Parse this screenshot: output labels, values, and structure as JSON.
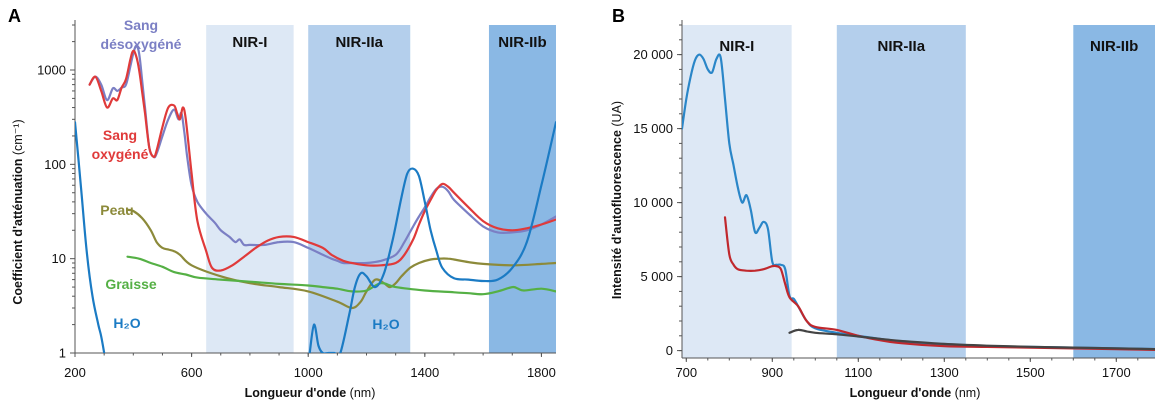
{
  "figure": {
    "width": 1155,
    "height": 405
  },
  "chart_data": [
    {
      "panel": "A",
      "type": "line",
      "xlabel": "Longueur d'onde",
      "xlabel_unit": "(nm)",
      "ylabel": "Coefficient d'atténuation",
      "ylabel_unit": "(cm⁻¹)",
      "xlim": [
        200,
        1850
      ],
      "ylim": [
        1,
        3000
      ],
      "yscale": "log",
      "xticks": [
        200,
        600,
        1000,
        1400,
        1800
      ],
      "yticks": [
        1,
        10,
        100,
        1000
      ],
      "bands": [
        {
          "label": "NIR-I",
          "range": [
            650,
            950
          ],
          "color": "#dde8f5"
        },
        {
          "label": "NIR-IIa",
          "range": [
            1000,
            1350
          ],
          "color": "#b4cfec"
        },
        {
          "label": "NIR-IIb",
          "range": [
            1620,
            1850
          ],
          "color": "#8ab8e4"
        }
      ],
      "series": [
        {
          "name": "Sang désoxygéné",
          "label_lines": [
            "Sang",
            "désoxygéné"
          ],
          "color": "#7b7fc4",
          "x": [
            250,
            270,
            290,
            310,
            330,
            345,
            360,
            375,
            390,
            400,
            410,
            420,
            430,
            440,
            455,
            470,
            480,
            500,
            520,
            540,
            555,
            565,
            575,
            585,
            600,
            620,
            650,
            680,
            700,
            730,
            750,
            765,
            780,
            800,
            850,
            900,
            950,
            1000,
            1050,
            1080,
            1100,
            1120,
            1150,
            1200,
            1250,
            1300,
            1330,
            1360,
            1380,
            1400,
            1420,
            1440,
            1460,
            1480,
            1500,
            1550,
            1600,
            1650,
            1700,
            1750,
            1800,
            1850
          ],
          "y": [
            700,
            850,
            700,
            480,
            640,
            600,
            650,
            700,
            1100,
            1500,
            1800,
            1500,
            800,
            400,
            150,
            120,
            130,
            200,
            300,
            380,
            300,
            350,
            220,
            120,
            60,
            40,
            30,
            24,
            20,
            17,
            15,
            16,
            14,
            14,
            14,
            15,
            15,
            13,
            11,
            10,
            9.5,
            9,
            9,
            9,
            9.5,
            11,
            15,
            22,
            28,
            35,
            45,
            55,
            58,
            52,
            42,
            30,
            22,
            19,
            19,
            20,
            23,
            28
          ]
        },
        {
          "name": "Sang oxygéné",
          "label_lines": [
            "Sang",
            "oxygéné"
          ],
          "color": "#e03a3a",
          "x": [
            250,
            270,
            290,
            310,
            330,
            345,
            360,
            375,
            390,
            400,
            410,
            420,
            430,
            440,
            455,
            470,
            480,
            500,
            520,
            540,
            550,
            560,
            570,
            580,
            600,
            620,
            650,
            670,
            700,
            740,
            780,
            820,
            860,
            900,
            950,
            1000,
            1050,
            1080,
            1120,
            1150,
            1200,
            1250,
            1300,
            1330,
            1360,
            1380,
            1400,
            1420,
            1440,
            1460,
            1480,
            1500,
            1550,
            1600,
            1650,
            1700,
            1750,
            1800,
            1850
          ],
          "y": [
            700,
            850,
            600,
            400,
            500,
            480,
            650,
            800,
            1300,
            1600,
            1400,
            1000,
            600,
            350,
            150,
            120,
            140,
            250,
            400,
            420,
            350,
            300,
            400,
            300,
            80,
            25,
            12,
            8,
            7.5,
            8.5,
            10.5,
            13,
            15.5,
            17,
            17,
            15,
            13,
            11,
            9.5,
            9,
            8.5,
            8.5,
            9,
            11,
            16,
            23,
            32,
            42,
            54,
            62,
            58,
            50,
            35,
            25,
            21,
            20,
            21,
            23,
            26
          ]
        },
        {
          "name": "Peau",
          "label_lines": [
            "Peau"
          ],
          "color": "#8c8a3a",
          "x": [
            380,
            400,
            430,
            460,
            480,
            500,
            520,
            540,
            560,
            600,
            700,
            800,
            900,
            1000,
            1100,
            1150,
            1180,
            1200,
            1230,
            1260,
            1280,
            1300,
            1320,
            1350,
            1380,
            1420,
            1450,
            1480,
            1500,
            1550,
            1600,
            1700,
            1800,
            1850
          ],
          "y": [
            33,
            32,
            27,
            20,
            15,
            13,
            12.5,
            12,
            11,
            8.5,
            6.5,
            5.5,
            5,
            4.5,
            3.5,
            3,
            3.5,
            4.5,
            6,
            5.5,
            5,
            5.5,
            6.5,
            8,
            9,
            9.8,
            10,
            10,
            9.8,
            9.2,
            8.8,
            8.5,
            8.8,
            9
          ]
        },
        {
          "name": "Graisse",
          "label_lines": [
            "Graisse"
          ],
          "color": "#55b045",
          "x": [
            380,
            420,
            460,
            500,
            540,
            580,
            620,
            700,
            800,
            900,
            1000,
            1050,
            1100,
            1150,
            1200,
            1250,
            1300,
            1400,
            1500,
            1550,
            1600,
            1650,
            1700,
            1720,
            1740,
            1800,
            1850
          ],
          "y": [
            10.5,
            10,
            9,
            8.2,
            7.2,
            6.8,
            6.3,
            6,
            5.7,
            5.4,
            5.2,
            5,
            4.8,
            4.5,
            4.6,
            5.5,
            5,
            4.6,
            4.4,
            4.3,
            4.2,
            4.5,
            5,
            4.8,
            4.6,
            4.8,
            4.5
          ]
        },
        {
          "name": "H₂O",
          "label_lines": [
            "H₂O"
          ],
          "color": "#1b7bc4",
          "x": [
            200,
            220,
            240,
            260,
            280,
            290,
            300
          ],
          "y": [
            280,
            60,
            12,
            4,
            2,
            1.5,
            1
          ]
        },
        {
          "name": "H₂O",
          "label_lines": [
            "H₂O"
          ],
          "color": "#1b7bc4",
          "x": [
            1005,
            1020,
            1035,
            1050,
            1070,
            1090,
            1110,
            1140,
            1160,
            1180,
            1200,
            1230,
            1260,
            1290,
            1320,
            1340,
            1360,
            1380,
            1400,
            1420,
            1440,
            1460,
            1500,
            1550,
            1600,
            1650,
            1700,
            1750,
            1800,
            1850
          ],
          "y": [
            1,
            2,
            1.2,
            1,
            1,
            1,
            1,
            2.5,
            5,
            7,
            6.5,
            5,
            7,
            16,
            45,
            80,
            90,
            75,
            40,
            20,
            12,
            8,
            6.2,
            6,
            5.8,
            6,
            8,
            15,
            60,
            280
          ]
        }
      ]
    },
    {
      "panel": "B",
      "type": "line",
      "xlabel": "Longueur d'onde",
      "xlabel_unit": "(nm)",
      "ylabel": "Intensité d'autofluorescence",
      "ylabel_unit": "(UA)",
      "xlim": [
        690,
        1790
      ],
      "ylim": [
        -500,
        22000
      ],
      "xticks": [
        700,
        900,
        1100,
        1300,
        1500,
        1700
      ],
      "yticks": [
        0,
        5000,
        10000,
        15000,
        20000
      ],
      "yticklabels": [
        "0",
        "5 000",
        "10 000",
        "15 000",
        "20 000"
      ],
      "bands": [
        {
          "label": "NIR-I",
          "range": [
            690,
            945
          ],
          "color": "#dde8f5"
        },
        {
          "label": "NIR-IIa",
          "range": [
            1050,
            1350
          ],
          "color": "#b4cfec"
        },
        {
          "label": "NIR-IIb",
          "range": [
            1600,
            1790
          ],
          "color": "#8ab8e4"
        }
      ],
      "series": [
        {
          "color": "#2a86c8",
          "x": [
            690,
            700,
            710,
            720,
            730,
            740,
            750,
            760,
            770,
            780,
            790,
            800,
            810,
            820,
            830,
            840,
            850,
            860,
            870,
            880,
            890,
            900,
            910,
            920,
            930,
            940,
            950,
            960,
            980,
            1000,
            1050,
            1100,
            1150,
            1200,
            1300,
            1400,
            1500,
            1600,
            1700,
            1790
          ],
          "y": [
            15000,
            17000,
            18500,
            19600,
            20000,
            19700,
            19000,
            18800,
            19700,
            19800,
            17000,
            14000,
            12500,
            11000,
            10000,
            10500,
            9500,
            8000,
            8300,
            8700,
            8200,
            6000,
            5800,
            5800,
            5500,
            3700,
            3500,
            3000,
            2000,
            1500,
            1200,
            1000,
            800,
            600,
            400,
            300,
            250,
            200,
            150,
            100
          ]
        },
        {
          "color": "#c0282d",
          "x": [
            790,
            800,
            810,
            820,
            840,
            860,
            880,
            900,
            910,
            920,
            930,
            940,
            960,
            980,
            1000,
            1050,
            1100,
            1150,
            1200,
            1300,
            1400,
            1500,
            1600,
            1700,
            1790
          ],
          "y": [
            9000,
            6500,
            5800,
            5500,
            5400,
            5400,
            5500,
            5700,
            5700,
            5500,
            4500,
            3600,
            3000,
            2000,
            1600,
            1400,
            1000,
            700,
            500,
            300,
            250,
            200,
            150,
            100,
            50
          ]
        },
        {
          "color": "#444444",
          "x": [
            940,
            960,
            980,
            1000,
            1050,
            1100,
            1150,
            1200,
            1300,
            1400,
            1500,
            1600,
            1700,
            1790
          ],
          "y": [
            1200,
            1400,
            1300,
            1200,
            1100,
            950,
            800,
            650,
            450,
            330,
            260,
            200,
            150,
            100
          ]
        }
      ]
    }
  ]
}
